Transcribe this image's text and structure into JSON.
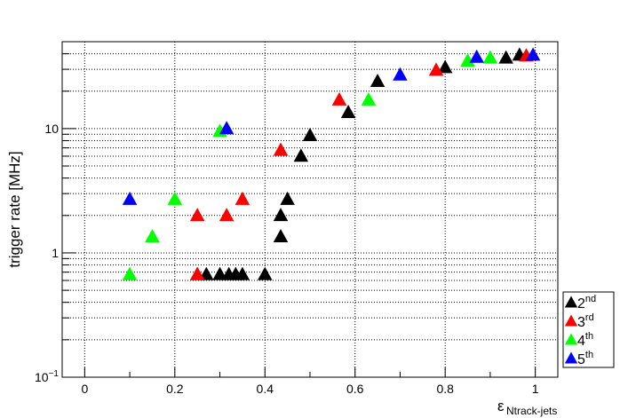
{
  "chart_data": {
    "type": "scatter",
    "title": "",
    "xlabel": "ε",
    "xlabel_sub": "Ntrack-jets",
    "ylabel": "trigger rate [MHz]",
    "xlim": [
      -0.05,
      1.05
    ],
    "ylim": [
      0.1,
      50
    ],
    "y_scale": "log",
    "grid": true,
    "legend_placement": "bottom-right",
    "x_ticks": [
      {
        "v": 0,
        "label": "0"
      },
      {
        "v": 0.2,
        "label": "0.2"
      },
      {
        "v": 0.4,
        "label": "0.4"
      },
      {
        "v": 0.6,
        "label": "0.6"
      },
      {
        "v": 0.8,
        "label": "0.8"
      },
      {
        "v": 1,
        "label": "1"
      }
    ],
    "y_ticks": [
      {
        "v": 0.1,
        "base": "10",
        "exp": "−1"
      },
      {
        "v": 1,
        "base": "1",
        "exp": ""
      },
      {
        "v": 10,
        "base": "10",
        "exp": ""
      }
    ],
    "series": [
      {
        "name": "2",
        "sup": "nd",
        "color": "#000000",
        "points": [
          [
            0.25,
            0.67
          ],
          [
            0.27,
            0.67
          ],
          [
            0.3,
            0.67
          ],
          [
            0.32,
            0.67
          ],
          [
            0.335,
            0.67
          ],
          [
            0.35,
            0.67
          ],
          [
            0.4,
            0.67
          ],
          [
            0.435,
            1.35
          ],
          [
            0.435,
            2.0
          ],
          [
            0.45,
            2.7
          ],
          [
            0.48,
            6.0
          ],
          [
            0.5,
            8.8
          ],
          [
            0.585,
            13.5
          ],
          [
            0.65,
            24
          ],
          [
            0.8,
            31
          ],
          [
            0.935,
            37
          ],
          [
            0.965,
            39
          ]
        ]
      },
      {
        "name": "3",
        "sup": "rd",
        "color": "#ff0000",
        "points": [
          [
            0.25,
            0.67
          ],
          [
            0.25,
            2.0
          ],
          [
            0.315,
            2.0
          ],
          [
            0.35,
            2.7
          ],
          [
            0.435,
            6.7
          ],
          [
            0.565,
            17
          ],
          [
            0.78,
            29.5
          ],
          [
            0.98,
            38.5
          ]
        ]
      },
      {
        "name": "4",
        "sup": "th",
        "color": "#00ff00",
        "points": [
          [
            0.1,
            0.67
          ],
          [
            0.15,
            1.35
          ],
          [
            0.2,
            2.7
          ],
          [
            0.3,
            9.5
          ],
          [
            0.63,
            17
          ],
          [
            0.85,
            35
          ],
          [
            0.9,
            37
          ]
        ]
      },
      {
        "name": "5",
        "sup": "th",
        "color": "#0000ff",
        "points": [
          [
            0.1,
            2.7
          ],
          [
            0.315,
            10
          ],
          [
            0.7,
            27
          ],
          [
            0.87,
            37.5
          ],
          [
            0.995,
            39
          ]
        ]
      }
    ]
  }
}
